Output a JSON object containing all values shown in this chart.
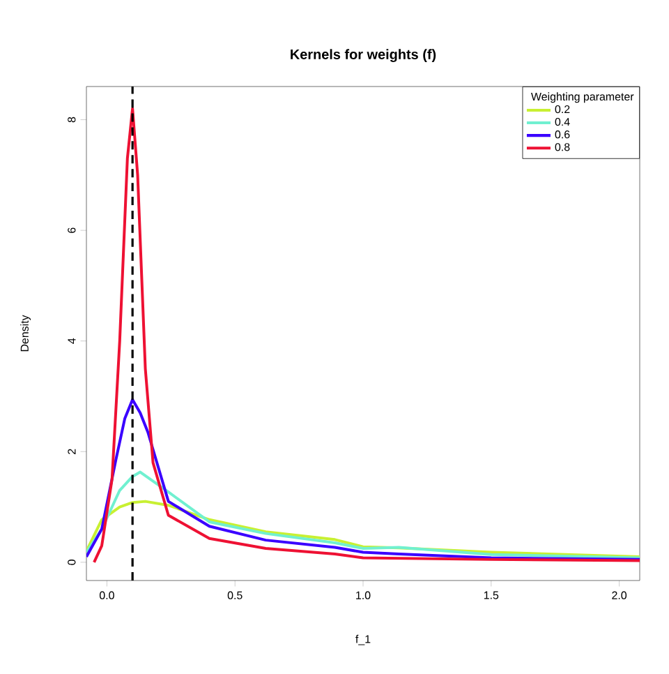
{
  "chart_data": {
    "type": "line",
    "title": "Kernels for weights (f)",
    "xlabel": "f_1",
    "ylabel": "Density",
    "legend_title": "Weighting parameter",
    "xlim": [
      -0.08,
      2.08
    ],
    "ylim": [
      -0.33,
      8.6
    ],
    "xticks": [
      {
        "value": 0,
        "label": "0.0"
      },
      0.5,
      {
        "value": 1,
        "label": "1.0"
      },
      1.5,
      {
        "value": 2,
        "label": "2.0"
      }
    ],
    "yticks": [
      0,
      2,
      4,
      6,
      8
    ],
    "legend": "top right",
    "grid": false,
    "line_style": "solid",
    "marker": "none",
    "ref_lines": [
      {
        "axis": "x",
        "value": 0.1,
        "color": "#000000",
        "line_style": "dashed"
      }
    ],
    "series": [
      {
        "name": "0.2",
        "color": "#c8f032",
        "x": [
          -0.08,
          -0.02,
          0.05,
          0.1,
          0.15,
          0.24,
          0.4,
          0.62,
          0.89,
          1.0,
          1.14,
          1.5,
          2.08
        ],
        "values": [
          0.2,
          0.77,
          1.0,
          1.08,
          1.1,
          1.03,
          0.77,
          0.55,
          0.41,
          0.28,
          0.26,
          0.18,
          0.1
        ]
      },
      {
        "name": "0.4",
        "color": "#70f0d0",
        "x": [
          -0.08,
          -0.02,
          0.05,
          0.1,
          0.13,
          0.24,
          0.4,
          0.62,
          0.89,
          1.0,
          1.14,
          1.5,
          2.08
        ],
        "values": [
          0.18,
          0.6,
          1.3,
          1.55,
          1.63,
          1.27,
          0.73,
          0.52,
          0.35,
          0.25,
          0.27,
          0.14,
          0.08
        ]
      },
      {
        "name": "0.6",
        "color": "#3a00ff",
        "x": [
          -0.08,
          -0.02,
          0.035,
          0.07,
          0.1,
          0.13,
          0.16,
          0.24,
          0.4,
          0.62,
          0.89,
          1.0,
          1.14,
          1.5,
          2.08
        ],
        "values": [
          0.1,
          0.6,
          1.85,
          2.6,
          2.94,
          2.7,
          2.35,
          1.1,
          0.65,
          0.4,
          0.27,
          0.18,
          0.15,
          0.08,
          0.05
        ]
      },
      {
        "name": "0.8",
        "color": "#ee1133",
        "x": [
          -0.05,
          -0.02,
          0.02,
          0.05,
          0.08,
          0.1,
          0.12,
          0.15,
          0.18,
          0.24,
          0.4,
          0.62,
          0.89,
          1.0,
          1.5,
          2.08
        ],
        "values": [
          0,
          0.3,
          1.5,
          4.0,
          7.3,
          8.2,
          7.0,
          3.5,
          1.8,
          0.85,
          0.43,
          0.25,
          0.15,
          0.08,
          0.05,
          0.03
        ]
      }
    ]
  }
}
